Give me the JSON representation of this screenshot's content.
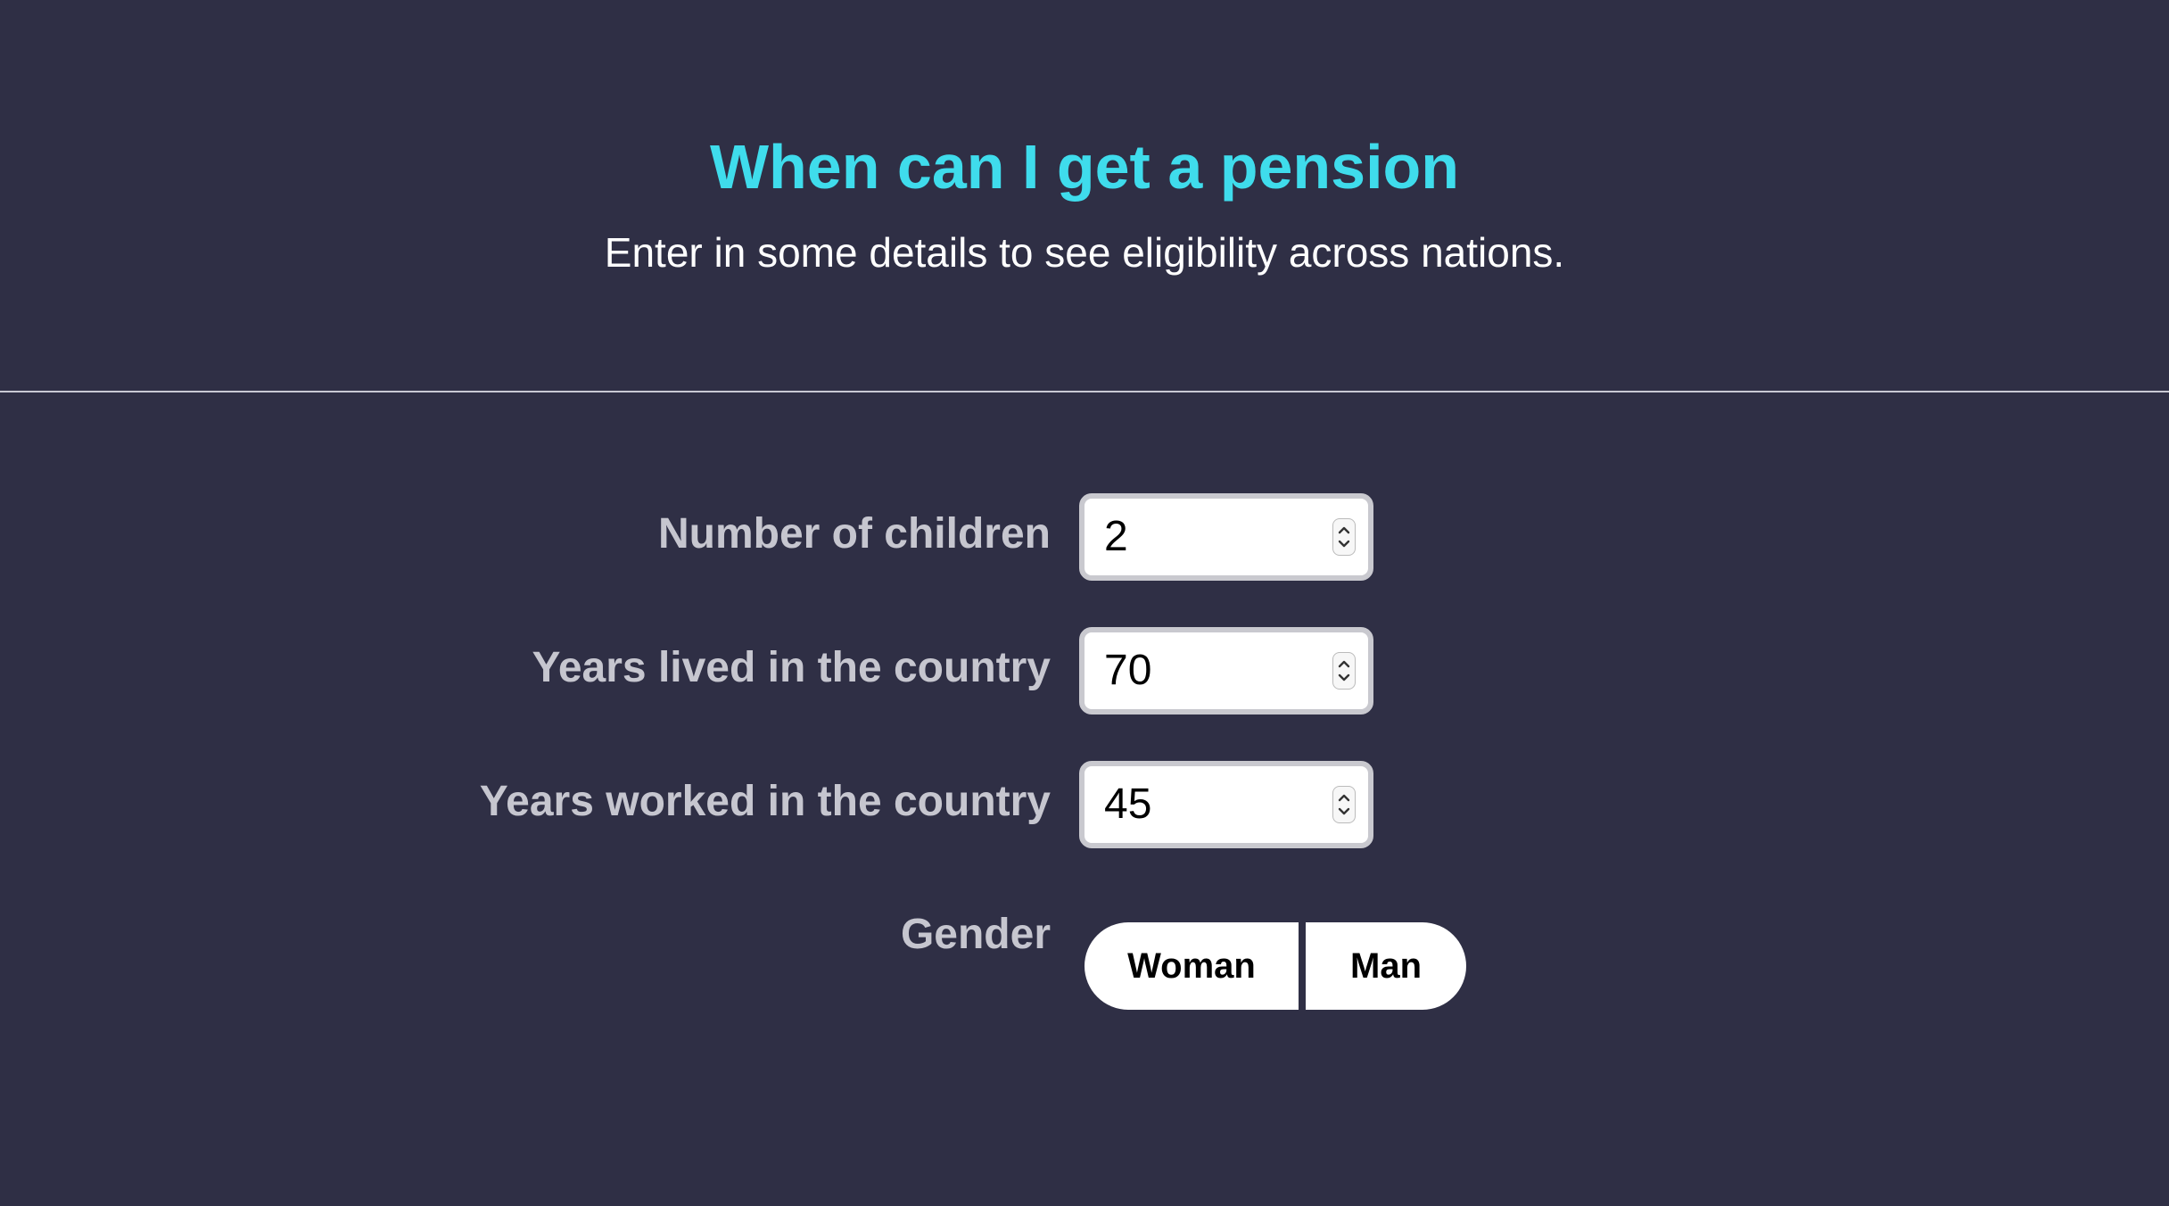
{
  "header": {
    "title": "When can I get a pension",
    "subtitle": "Enter in some details to see eligibility across nations."
  },
  "form": {
    "children": {
      "label": "Number of children",
      "value": "2"
    },
    "years_lived": {
      "label": "Years lived in the country",
      "value": "70"
    },
    "years_worked": {
      "label": "Years worked in the country",
      "value": "45"
    },
    "gender": {
      "label": "Gender",
      "options": [
        "Woman",
        "Man"
      ]
    }
  },
  "colors": {
    "background": "#2f2f45",
    "title": "#3fdcec",
    "label": "#c6c6cf"
  }
}
